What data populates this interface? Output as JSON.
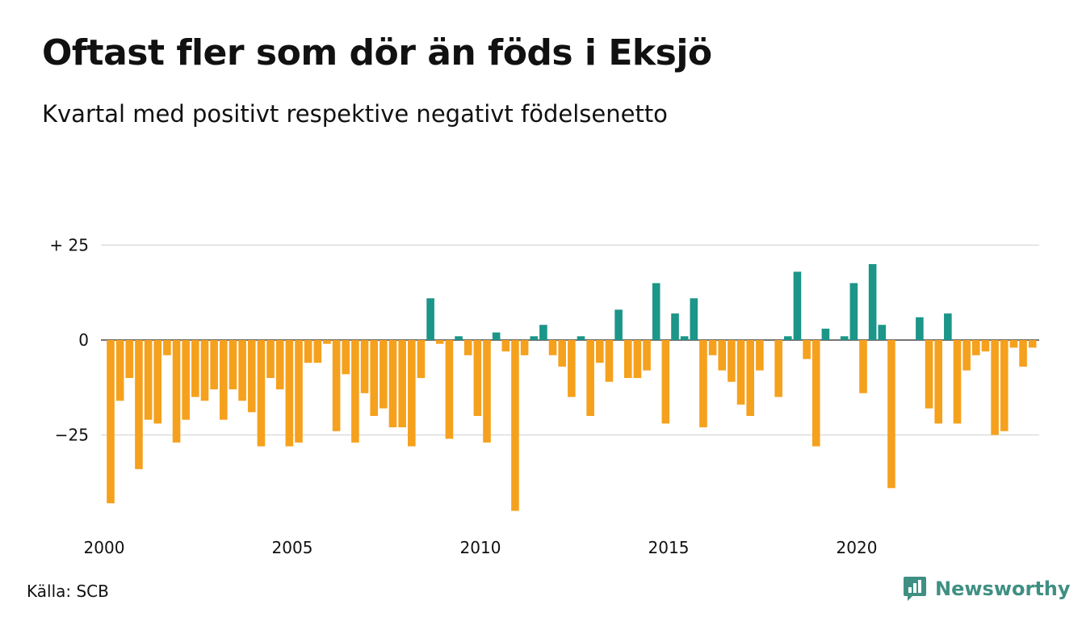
{
  "title": "Oftast fler som dör än föds i Eksjö",
  "subtitle": "Kvartal med positivt respektive negativt födelsenetto",
  "source": "Källa: SCB",
  "brand": "Newsworthy",
  "icons": {
    "brand_logo": "bar-chart-speech-bubble-icon"
  },
  "colors": {
    "positive": "#1b9688",
    "negative": "#f5a11d",
    "grid": "#dddddd",
    "brand": "#3f8f83"
  },
  "chart_data": {
    "type": "bar",
    "title": "Oftast fler som dör än föds i Eksjö",
    "subtitle": "Kvartal med positivt respektive negativt födelsenetto",
    "x_start": 2000,
    "x_step": 0.25,
    "x_ticks": [
      "2000",
      "2005",
      "2010",
      "2015",
      "2020"
    ],
    "y_ticks": [
      {
        "value": 25,
        "label": "+ 25"
      },
      {
        "value": 0,
        "label": "0"
      },
      {
        "value": -25,
        "label": "−25"
      }
    ],
    "ylim": [
      -47,
      27
    ],
    "grid": true,
    "values": [
      -43,
      -16,
      -10,
      -34,
      -21,
      -22,
      -4,
      -27,
      -21,
      -15,
      -16,
      -13,
      -21,
      -13,
      -16,
      -19,
      -28,
      -10,
      -13,
      -28,
      -27,
      -6,
      -6,
      -1,
      -24,
      -9,
      -27,
      -14,
      -20,
      -18,
      -23,
      -23,
      -28,
      -10,
      11,
      -1,
      -26,
      1,
      -4,
      -20,
      -27,
      2,
      -3,
      -45,
      -4,
      1,
      4,
      -4,
      -7,
      -15,
      1,
      -20,
      -6,
      -11,
      8,
      -10,
      -10,
      -8,
      15,
      -22,
      7,
      1,
      11,
      -23,
      -4,
      -8,
      -11,
      -17,
      -20,
      -8,
      0,
      -15,
      1,
      18,
      -5,
      -28,
      3,
      0,
      1,
      15,
      -14,
      20,
      4,
      -39,
      0,
      0,
      6,
      -18,
      -22,
      7,
      -22,
      -8,
      -4,
      -3,
      -25,
      -24,
      -2,
      -7,
      -2
    ]
  }
}
